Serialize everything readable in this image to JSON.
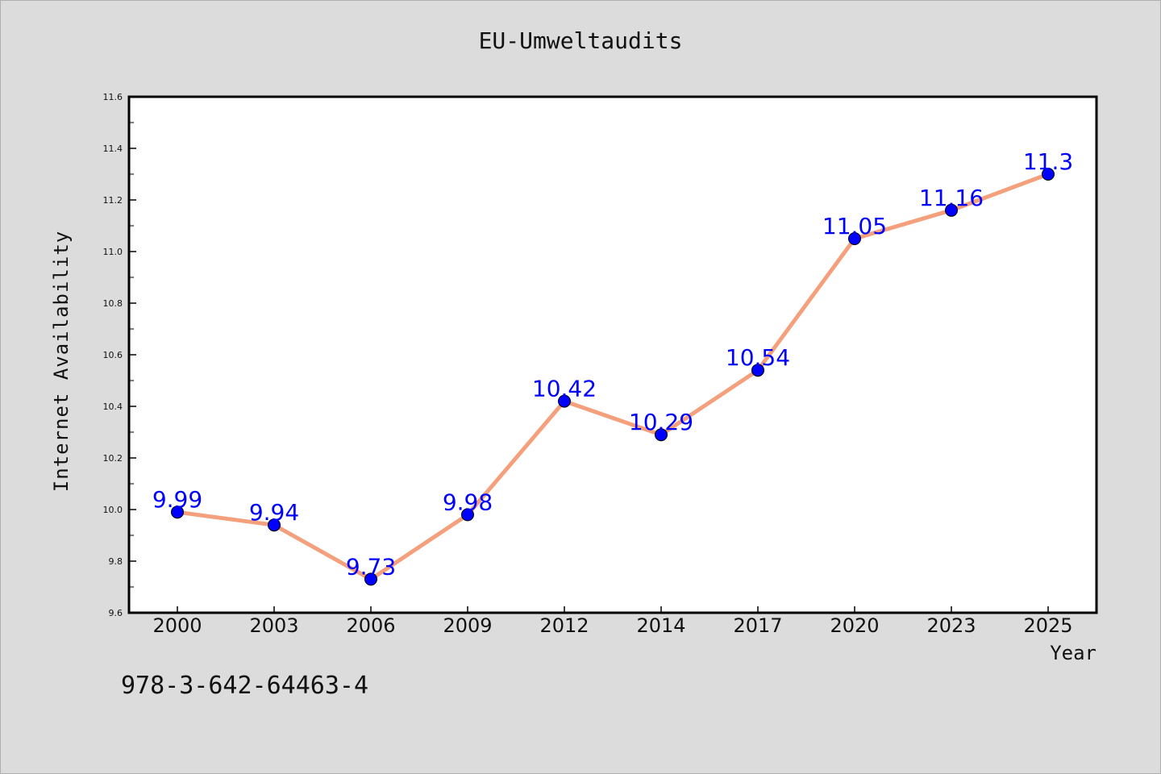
{
  "chart_data": {
    "type": "line",
    "title": "EU-Umweltaudits",
    "xlabel": "Year",
    "ylabel": "Internet Availability",
    "categories": [
      "2000",
      "2003",
      "2006",
      "2009",
      "2012",
      "2014",
      "2017",
      "2020",
      "2023",
      "2025"
    ],
    "series": [
      {
        "values": [
          9.99,
          9.94,
          9.73,
          9.98,
          10.42,
          10.29,
          10.54,
          11.05,
          11.16,
          11.3
        ],
        "labels": [
          "9.99",
          "9.94",
          "9.73",
          "9.98",
          "10.42",
          "10.29",
          "10.54",
          "11.05",
          "11.16",
          "11.3"
        ],
        "line_color": "#f4a07c",
        "marker_color": "#0000ff"
      }
    ],
    "ylim": [
      9.6,
      11.6
    ],
    "yticks": [
      "9.6",
      "9.8",
      "10.0",
      "10.2",
      "10.4",
      "10.6",
      "10.8",
      "11.0",
      "11.2",
      "11.4",
      "11.6"
    ],
    "grid": false,
    "label_color": "#0000ff"
  },
  "footer": {
    "isbn": "978-3-642-64463-4"
  }
}
